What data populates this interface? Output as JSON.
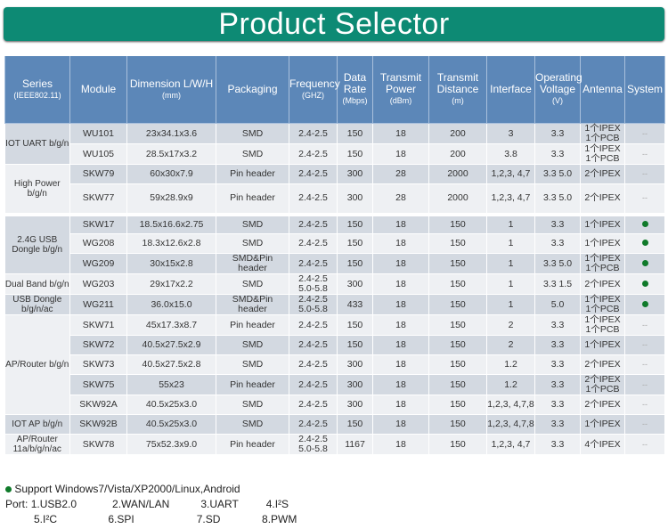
{
  "title": "Product Selector",
  "colors": {
    "banner": "#0d8a74",
    "header": "#5c87b8",
    "row_dark": "#d3d9e1",
    "row_light": "#eef0f3",
    "dot": "#0f7a2a"
  },
  "headers": [
    {
      "main": "Series",
      "sub": "(IEEE802.11)"
    },
    {
      "main": "Module",
      "sub": ""
    },
    {
      "main": "Dimension L/W/H",
      "sub": "(mm)"
    },
    {
      "main": "Packaging",
      "sub": ""
    },
    {
      "main": "Frequency",
      "sub": "(GHZ)"
    },
    {
      "main": "Data Rate",
      "sub": "(Mbps)"
    },
    {
      "main": "Transmit Power",
      "sub": "(dBm)"
    },
    {
      "main": "Transmit Distance",
      "sub": "(m)"
    },
    {
      "main": "Interface",
      "sub": ""
    },
    {
      "main": "Operating Voltage",
      "sub": "(V)"
    },
    {
      "main": "Antenna",
      "sub": ""
    },
    {
      "main": "System",
      "sub": ""
    }
  ],
  "groups": [
    {
      "series": "IOT UART b/g/n",
      "rows": [
        {
          "module": "WU101",
          "dim": "23x34.1x3.6",
          "pack": "SMD",
          "freq": "2.4-2.5",
          "rate": "150",
          "power": "18",
          "dist": "200",
          "iface": "3",
          "volt": "3.3",
          "ant": "1个IPEX 1个PCB",
          "system": "--"
        },
        {
          "module": "WU105",
          "dim": "28.5x17x3.2",
          "pack": "SMD",
          "freq": "2.4-2.5",
          "rate": "150",
          "power": "18",
          "dist": "200",
          "iface": "3.8",
          "volt": "3.3",
          "ant": "1个IPEX 1个PCB",
          "system": "--"
        }
      ]
    },
    {
      "series": "High Power b/g/n",
      "rows": [
        {
          "module": "SKW79",
          "dim": "60x30x7.9",
          "pack": "Pin header",
          "freq": "2.4-2.5",
          "rate": "300",
          "power": "28",
          "dist": "2000",
          "iface": "1,2,3, 4,7",
          "volt": "3.3 5.0",
          "ant": "2个IPEX",
          "system": "--"
        },
        {
          "module": "SKW77",
          "dim": "59x28.9x9",
          "pack": "Pin header",
          "freq": "2.4-2.5",
          "rate": "300",
          "power": "28",
          "dist": "2000",
          "iface": "1,2,3, 4,7",
          "volt": "3.3 5.0",
          "ant": "2个IPEX",
          "system": "--"
        }
      ]
    },
    {
      "series": "2.4G USB Dongle b/g/n",
      "rows": [
        {
          "module": "SKW17",
          "dim": "18.5x16.6x2.75",
          "pack": "SMD",
          "freq": "2.4-2.5",
          "rate": "150",
          "power": "18",
          "dist": "150",
          "iface": "1",
          "volt": "3.3",
          "ant": "1个IPEX",
          "system": "dot"
        },
        {
          "module": "WG208",
          "dim": "18.3x12.6x2.8",
          "pack": "SMD",
          "freq": "2.4-2.5",
          "rate": "150",
          "power": "18",
          "dist": "150",
          "iface": "1",
          "volt": "3.3",
          "ant": "1个IPEX",
          "system": "dot"
        },
        {
          "module": "WG209",
          "dim": "30x15x2.8",
          "pack": "SMD&Pin header",
          "freq": "2.4-2.5",
          "rate": "150",
          "power": "18",
          "dist": "150",
          "iface": "1",
          "volt": "3.3 5.0",
          "ant": "1个IPEX 1个PCB",
          "system": "dot"
        }
      ]
    },
    {
      "series": "Dual Band b/g/n",
      "rows": [
        {
          "module": "WG203",
          "dim": "29x17x2.2",
          "pack": "SMD",
          "freq": "2.4-2.5 5.0-5.8",
          "rate": "300",
          "power": "18",
          "dist": "150",
          "iface": "1",
          "volt": "3.3 1.5",
          "ant": "2个IPEX",
          "system": "dot"
        }
      ]
    },
    {
      "series": "USB Dongle b/g/n/ac",
      "rows": [
        {
          "module": "WG211",
          "dim": "36.0x15.0",
          "pack": "SMD&Pin header",
          "freq": "2.4-2.5 5.0-5.8",
          "rate": "433",
          "power": "18",
          "dist": "150",
          "iface": "1",
          "volt": "5.0",
          "ant": "1个IPEX 1个PCB",
          "system": "dot"
        }
      ]
    },
    {
      "series": "AP/Router b/g/n",
      "rows": [
        {
          "module": "SKW71",
          "dim": "45x17.3x8.7",
          "pack": "Pin header",
          "freq": "2.4-2.5",
          "rate": "150",
          "power": "18",
          "dist": "150",
          "iface": "2",
          "volt": "3.3",
          "ant": "1个IPEX 1个PCB",
          "system": "--"
        },
        {
          "module": "SKW72",
          "dim": "40.5x27.5x2.9",
          "pack": "SMD",
          "freq": "2.4-2.5",
          "rate": "150",
          "power": "18",
          "dist": "150",
          "iface": "2",
          "volt": "3.3",
          "ant": "1个IPEX",
          "system": "--"
        },
        {
          "module": "SKW73",
          "dim": "40.5x27.5x2.8",
          "pack": "SMD",
          "freq": "2.4-2.5",
          "rate": "300",
          "power": "18",
          "dist": "150",
          "iface": "1.2",
          "volt": "3.3",
          "ant": "2个IPEX",
          "system": "--"
        },
        {
          "module": "SKW75",
          "dim": "55x23",
          "pack": "Pin header",
          "freq": "2.4-2.5",
          "rate": "300",
          "power": "18",
          "dist": "150",
          "iface": "1.2",
          "volt": "3.3",
          "ant": "2个IPEX 1个PCB",
          "system": "--"
        },
        {
          "module": "SKW92A",
          "dim": "40.5x25x3.0",
          "pack": "SMD",
          "freq": "2.4-2.5",
          "rate": "300",
          "power": "18",
          "dist": "150",
          "iface": "1,2,3, 4,7,8",
          "volt": "3.3",
          "ant": "2个IPEX",
          "system": "--"
        }
      ]
    },
    {
      "series": "IOT AP b/g/n",
      "rows": [
        {
          "module": "SKW92B",
          "dim": "40.5x25x3.0",
          "pack": "SMD",
          "freq": "2.4-2.5",
          "rate": "150",
          "power": "18",
          "dist": "150",
          "iface": "1,2,3, 4,7,8",
          "volt": "3.3",
          "ant": "1个IPEX",
          "system": "--"
        }
      ]
    },
    {
      "series": "AP/Router 11a/b/g/n/ac",
      "rows": [
        {
          "module": "SKW78",
          "dim": "75x52.3x9.0",
          "pack": "Pin header",
          "freq": "2.4-2.5 5.0-5.8",
          "rate": "1167",
          "power": "18",
          "dist": "150",
          "iface": "1,2,3, 4,7",
          "volt": "3.3",
          "ant": "4个IPEX",
          "system": "--"
        }
      ]
    }
  ],
  "notes": {
    "support": "Support Windows7/Vista/XP2000/Linux,Android",
    "port_label": "Port:",
    "ports": [
      "1.USB2.0",
      "2.WAN/LAN",
      "3.UART",
      "4.I²S",
      "5.I²C",
      "6.SPI",
      "7.SD",
      "8.PWM"
    ]
  }
}
